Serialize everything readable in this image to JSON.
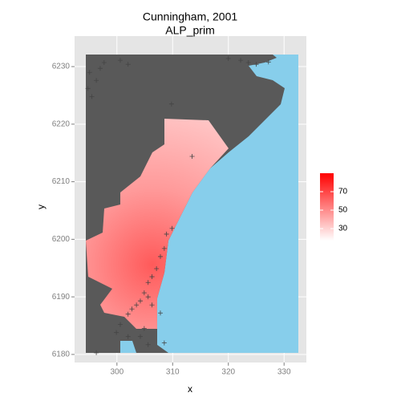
{
  "chart_data": {
    "type": "scatter",
    "title": "Cunningham, 2001",
    "subtitle": "ALP_prim",
    "x_label": "x",
    "y_label": "y",
    "xlim": [
      292.4,
      334.0
    ],
    "ylim": [
      6178.6,
      6235.3
    ],
    "xticks": [
      300,
      310,
      320,
      330
    ],
    "yticks": [
      6180,
      6190,
      6200,
      6210,
      6220,
      6230
    ],
    "grid": true,
    "marker_color": "#444444",
    "x": [
      294.8,
      295.5,
      296.3,
      297.0,
      297.7,
      295.1,
      300.6,
      302.0,
      320.0,
      322.2,
      323.6,
      325.0,
      327.2,
      309.8,
      313.5,
      309.9,
      308.9,
      308.5,
      307.8,
      307.1,
      306.3,
      305.6,
      304.9,
      304.2,
      303.5,
      302.7,
      302.0,
      305.6,
      306.3,
      307.8,
      304.9,
      304.2,
      305.6,
      300.6,
      299.9,
      296.3,
      302.0,
      308.5
    ],
    "y": [
      6226.2,
      6224.8,
      6227.6,
      6229.7,
      6230.7,
      6229.0,
      6231.1,
      6230.4,
      6231.4,
      6231.1,
      6230.7,
      6230.4,
      6230.8,
      6223.5,
      6214.4,
      6201.9,
      6200.9,
      6198.4,
      6197.0,
      6194.9,
      6193.5,
      6192.5,
      6190.7,
      6189.3,
      6188.6,
      6187.9,
      6187.0,
      6190.0,
      6188.6,
      6187.2,
      6184.5,
      6183.1,
      6181.7,
      6185.2,
      6183.8,
      6180.3,
      6183.1,
      6182.0
    ],
    "colorbar": {
      "lim": [
        17,
        90
      ],
      "ticks": [
        30,
        50,
        70
      ],
      "low_color": "#ffffff",
      "high_color": "#ff0000"
    }
  }
}
